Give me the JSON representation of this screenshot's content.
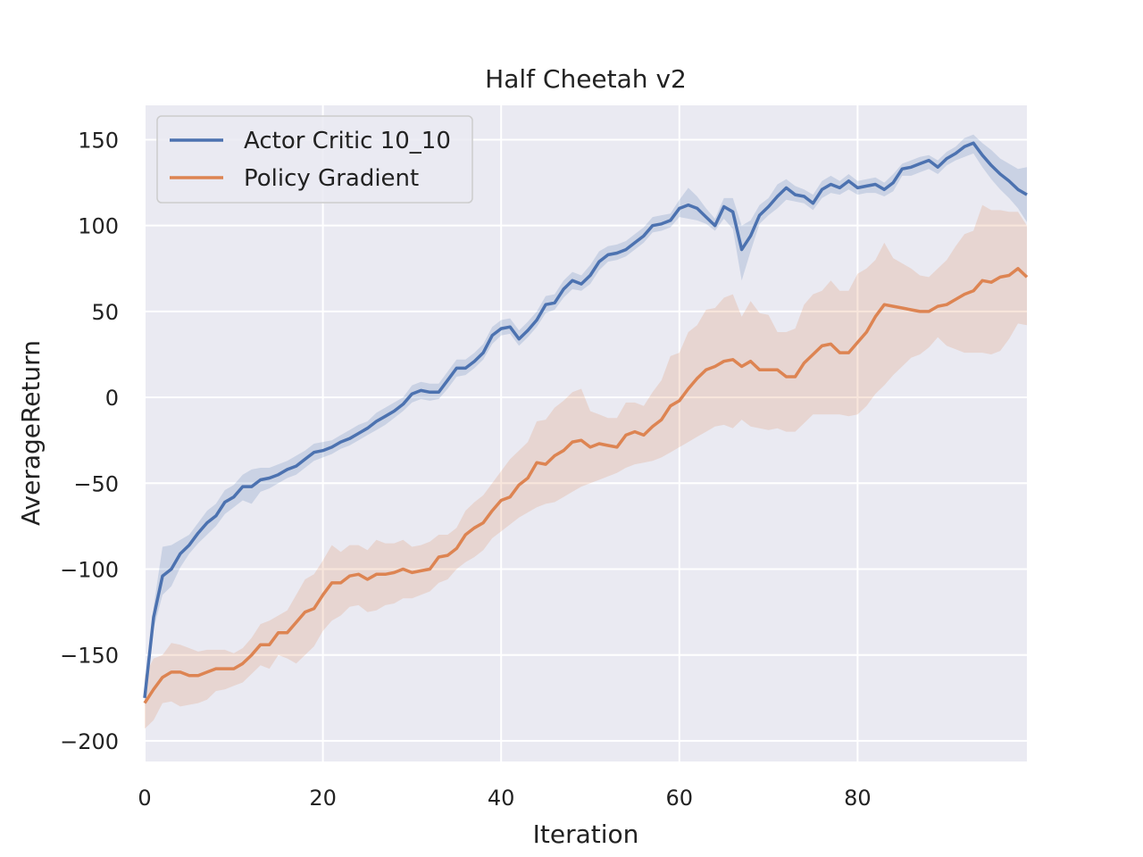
{
  "chart_data": {
    "type": "line",
    "title": "Half Cheetah v2",
    "xlabel": "Iteration",
    "ylabel": "AverageReturn",
    "xlim": [
      0,
      99
    ],
    "ylim": [
      -212,
      170
    ],
    "xticks": [
      0,
      20,
      40,
      60,
      80
    ],
    "yticks": [
      150,
      100,
      50,
      0,
      -50,
      -100,
      -150,
      -200
    ],
    "ytick_labels": [
      "150",
      "100",
      "50",
      "0",
      "−50",
      "−100",
      "−150",
      "−200"
    ],
    "grid": true,
    "legend_position": "top-left",
    "series": [
      {
        "name": "Actor Critic 10_10",
        "color": "#4c72b0",
        "band_color": "#4c72b0",
        "x": [
          0,
          1,
          2,
          3,
          4,
          5,
          6,
          7,
          8,
          9,
          10,
          11,
          12,
          13,
          14,
          15,
          16,
          17,
          18,
          19,
          20,
          21,
          22,
          23,
          24,
          25,
          26,
          27,
          28,
          29,
          30,
          31,
          32,
          33,
          34,
          35,
          36,
          37,
          38,
          39,
          40,
          41,
          42,
          43,
          44,
          45,
          46,
          47,
          48,
          49,
          50,
          51,
          52,
          53,
          54,
          55,
          56,
          57,
          58,
          59,
          60,
          61,
          62,
          63,
          64,
          65,
          66,
          67,
          68,
          69,
          70,
          71,
          72,
          73,
          74,
          75,
          76,
          77,
          78,
          79,
          80,
          81,
          82,
          83,
          84,
          85,
          86,
          87,
          88,
          89,
          90,
          91,
          92,
          93,
          94,
          95,
          96,
          97,
          98,
          99
        ],
        "y": [
          -175,
          -128,
          -104,
          -100,
          -91,
          -86,
          -79,
          -73,
          -69,
          -61,
          -58,
          -52,
          -52,
          -48,
          -47,
          -45,
          -42,
          -40,
          -36,
          -32,
          -31,
          -29,
          -26,
          -24,
          -21,
          -18,
          -14,
          -11,
          -8,
          -4,
          2,
          4,
          3,
          3,
          10,
          17,
          17,
          21,
          26,
          36,
          40,
          41,
          34,
          39,
          45,
          54,
          55,
          63,
          68,
          66,
          71,
          79,
          83,
          84,
          86,
          90,
          94,
          100,
          101,
          103,
          110,
          112,
          110,
          105,
          100,
          111,
          108,
          86,
          94,
          106,
          111,
          117,
          122,
          118,
          117,
          113,
          121,
          124,
          122,
          126,
          122,
          123,
          124,
          121,
          125,
          133,
          134,
          136,
          138,
          134,
          139,
          142,
          146,
          148,
          141,
          135,
          130,
          126,
          121,
          118
        ],
        "lower": [
          -180,
          -135,
          -115,
          -110,
          -99,
          -91,
          -85,
          -80,
          -75,
          -68,
          -64,
          -60,
          -62,
          -55,
          -53,
          -50,
          -47,
          -45,
          -41,
          -37,
          -35,
          -33,
          -30,
          -28,
          -25,
          -22,
          -19,
          -16,
          -12,
          -8,
          -3,
          -1,
          -2,
          -1,
          5,
          12,
          13,
          17,
          22,
          31,
          36,
          37,
          30,
          35,
          41,
          49,
          51,
          58,
          63,
          62,
          66,
          74,
          79,
          80,
          82,
          86,
          90,
          96,
          97,
          99,
          105,
          104,
          103,
          101,
          97,
          104,
          98,
          68,
          85,
          101,
          106,
          110,
          115,
          114,
          113,
          109,
          116,
          119,
          118,
          121,
          118,
          119,
          119,
          117,
          120,
          129,
          129,
          131,
          133,
          130,
          135,
          138,
          140,
          142,
          134,
          127,
          121,
          116,
          110,
          102
        ],
        "upper": [
          -170,
          -122,
          -87,
          -86,
          -83,
          -80,
          -73,
          -66,
          -62,
          -54,
          -51,
          -45,
          -42,
          -41,
          -41,
          -39,
          -37,
          -34,
          -31,
          -27,
          -26,
          -25,
          -22,
          -19,
          -16,
          -14,
          -9,
          -6,
          -3,
          0,
          7,
          9,
          8,
          8,
          15,
          22,
          22,
          26,
          31,
          41,
          45,
          46,
          39,
          44,
          50,
          59,
          60,
          68,
          73,
          71,
          77,
          85,
          88,
          89,
          91,
          95,
          99,
          105,
          106,
          107,
          115,
          122,
          117,
          110,
          104,
          116,
          116,
          100,
          103,
          112,
          116,
          124,
          127,
          123,
          121,
          118,
          126,
          129,
          126,
          130,
          126,
          127,
          128,
          125,
          130,
          136,
          138,
          140,
          141,
          138,
          143,
          146,
          151,
          153,
          148,
          144,
          139,
          136,
          133,
          134
        ]
      },
      {
        "name": "Policy Gradient",
        "color": "#dd8452",
        "band_color": "#dd8452",
        "x": [
          0,
          1,
          2,
          3,
          4,
          5,
          6,
          7,
          8,
          9,
          10,
          11,
          12,
          13,
          14,
          15,
          16,
          17,
          18,
          19,
          20,
          21,
          22,
          23,
          24,
          25,
          26,
          27,
          28,
          29,
          30,
          31,
          32,
          33,
          34,
          35,
          36,
          37,
          38,
          39,
          40,
          41,
          42,
          43,
          44,
          45,
          46,
          47,
          48,
          49,
          50,
          51,
          52,
          53,
          54,
          55,
          56,
          57,
          58,
          59,
          60,
          61,
          62,
          63,
          64,
          65,
          66,
          67,
          68,
          69,
          70,
          71,
          72,
          73,
          74,
          75,
          76,
          77,
          78,
          79,
          80,
          81,
          82,
          83,
          84,
          85,
          86,
          87,
          88,
          89,
          90,
          91,
          92,
          93,
          94,
          95,
          96,
          97,
          98,
          99
        ],
        "y": [
          -178,
          -170,
          -163,
          -160,
          -160,
          -162,
          -162,
          -160,
          -158,
          -158,
          -158,
          -155,
          -150,
          -144,
          -144,
          -137,
          -137,
          -131,
          -125,
          -123,
          -115,
          -108,
          -108,
          -104,
          -103,
          -106,
          -103,
          -103,
          -102,
          -100,
          -102,
          -101,
          -100,
          -93,
          -92,
          -88,
          -80,
          -76,
          -73,
          -66,
          -60,
          -58,
          -51,
          -47,
          -38,
          -39,
          -34,
          -31,
          -26,
          -25,
          -29,
          -27,
          -28,
          -29,
          -22,
          -20,
          -22,
          -17,
          -13,
          -5,
          -2,
          5,
          11,
          16,
          18,
          21,
          22,
          18,
          21,
          16,
          16,
          16,
          12,
          12,
          20,
          25,
          30,
          31,
          26,
          26,
          32,
          38,
          47,
          54,
          53,
          52,
          51,
          50,
          50,
          53,
          54,
          57,
          60,
          62,
          68,
          67,
          70,
          71,
          75,
          70
        ],
        "lower": [
          -193,
          -188,
          -178,
          -177,
          -180,
          -179,
          -178,
          -176,
          -171,
          -170,
          -168,
          -166,
          -161,
          -156,
          -158,
          -150,
          -152,
          -155,
          -150,
          -145,
          -136,
          -130,
          -127,
          -122,
          -121,
          -125,
          -124,
          -121,
          -120,
          -117,
          -117,
          -115,
          -113,
          -108,
          -106,
          -100,
          -96,
          -93,
          -89,
          -82,
          -78,
          -74,
          -70,
          -67,
          -64,
          -62,
          -61,
          -58,
          -55,
          -52,
          -50,
          -48,
          -46,
          -44,
          -41,
          -39,
          -38,
          -37,
          -35,
          -32,
          -29,
          -26,
          -23,
          -20,
          -17,
          -16,
          -18,
          -13,
          -17,
          -18,
          -19,
          -18,
          -20,
          -20,
          -15,
          -10,
          -10,
          -10,
          -10,
          -11,
          -10,
          -5,
          2,
          7,
          13,
          18,
          23,
          25,
          29,
          35,
          30,
          28,
          26,
          26,
          26,
          25,
          27,
          34,
          43,
          42
        ],
        "upper": [
          -162,
          -152,
          -150,
          -143,
          -144,
          -146,
          -148,
          -147,
          -147,
          -147,
          -149,
          -146,
          -140,
          -132,
          -130,
          -127,
          -124,
          -115,
          -106,
          -103,
          -95,
          -86,
          -90,
          -86,
          -86,
          -89,
          -83,
          -85,
          -85,
          -83,
          -87,
          -86,
          -84,
          -80,
          -80,
          -76,
          -66,
          -61,
          -57,
          -50,
          -43,
          -36,
          -31,
          -26,
          -14,
          -13,
          -6,
          -2,
          3,
          5,
          -8,
          -10,
          -12,
          -12,
          -3,
          -3,
          -5,
          3,
          10,
          24,
          26,
          38,
          42,
          51,
          52,
          58,
          60,
          47,
          56,
          49,
          48,
          38,
          38,
          40,
          54,
          60,
          62,
          68,
          62,
          62,
          72,
          75,
          80,
          90,
          81,
          78,
          75,
          71,
          70,
          75,
          80,
          88,
          95,
          97,
          112,
          109,
          109,
          108,
          108,
          100
        ]
      }
    ]
  }
}
